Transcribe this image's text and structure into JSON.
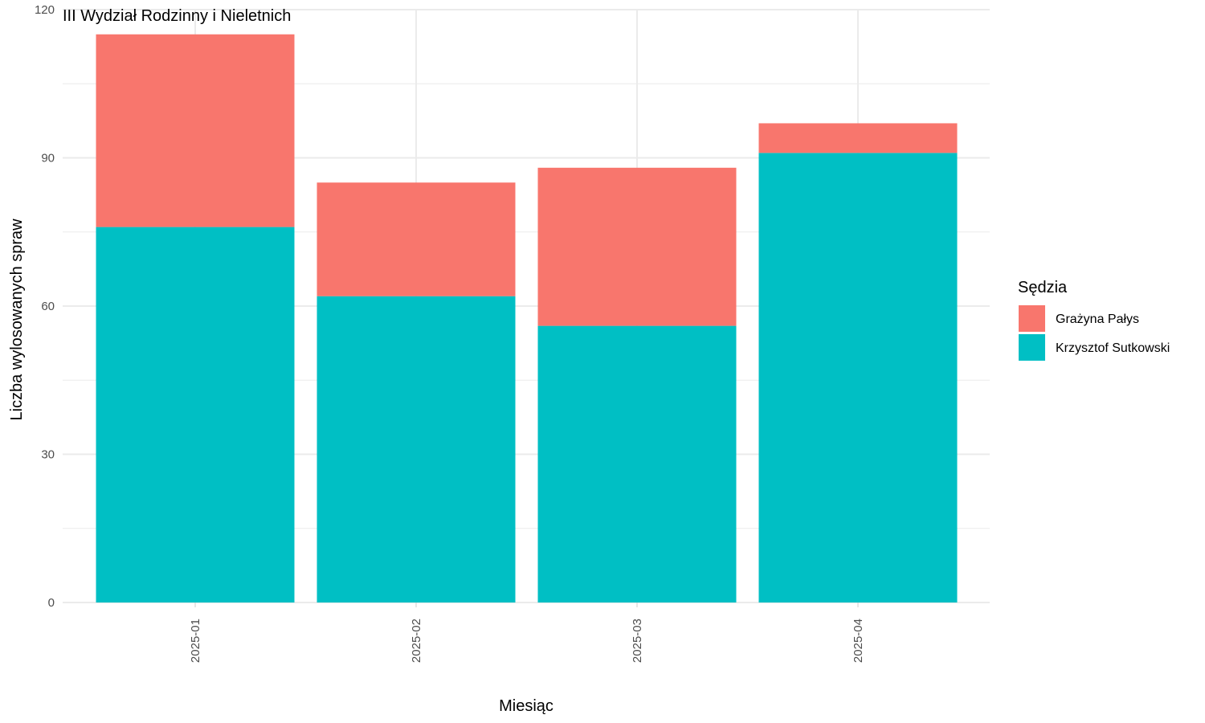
{
  "chart_data": {
    "type": "bar",
    "stacked": true,
    "title": "III Wydział Rodzinny i Nieletnich",
    "xlabel": "Miesiąc",
    "ylabel": "Liczba wylosowanych spraw",
    "categories": [
      "2025-01",
      "2025-02",
      "2025-03",
      "2025-04"
    ],
    "ylim": [
      0,
      120
    ],
    "yticks": [
      0,
      30,
      60,
      90,
      120
    ],
    "grid": true,
    "legend": {
      "title": "Sędzia",
      "placement": "right"
    },
    "series": [
      {
        "name": "Krzysztof Sutkowski",
        "color": "#00BFC4",
        "values": [
          76,
          62,
          56,
          91
        ]
      },
      {
        "name": "Grażyna Pałys",
        "color": "#F8766D",
        "values": [
          39,
          23,
          32,
          6
        ]
      }
    ],
    "legend_order": [
      "Grażyna Pałys",
      "Krzysztof Sutkowski"
    ]
  }
}
